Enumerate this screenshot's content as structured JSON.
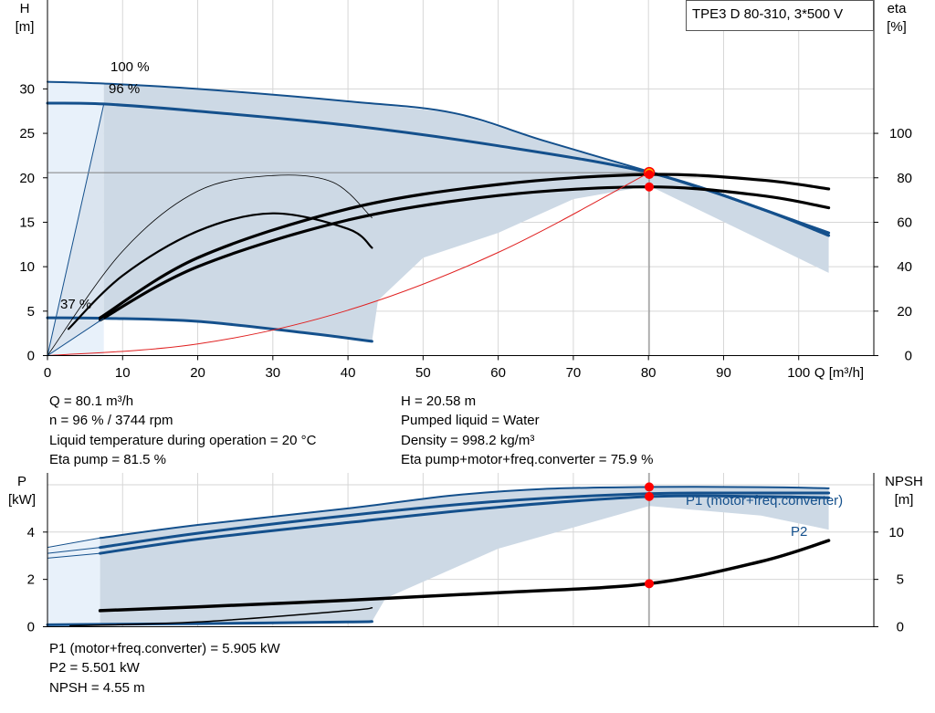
{
  "chart_data": [
    {
      "type": "line",
      "title": "TPE3 D 80-310, 3*500 V",
      "xlabel": "Q [m³/h]",
      "ylabel_top": "H",
      "ylabel_unit": "[m]",
      "y2label_top": "eta",
      "y2label_unit": "[%]",
      "xlim": [
        0,
        110
      ],
      "ylim": [
        0,
        40
      ],
      "y2lim": [
        0,
        160
      ],
      "x_ticks": [
        0,
        10,
        20,
        30,
        40,
        50,
        60,
        70,
        80,
        90,
        100
      ],
      "y_ticks": [
        0,
        5,
        10,
        15,
        20,
        25,
        30
      ],
      "y2_ticks": [
        0,
        20,
        40,
        60,
        80,
        100
      ],
      "curve_labels": [
        "100 %",
        "96 %",
        "37 %"
      ],
      "colors": {
        "pump_curve": "#14508c",
        "efficiency": "#000000",
        "system": "#e02020",
        "area": "#cdd9e5",
        "light_area": "#e8f1fa",
        "grid": "#d6d6d6",
        "duty_point": "#ff0000"
      },
      "series": [
        {
          "name": "100 %",
          "kind": "H",
          "x": [
            0,
            7.5,
            20,
            40,
            54,
            66,
            80.1
          ],
          "y": [
            30.8,
            30.6,
            30.0,
            28.6,
            27.3,
            24.2,
            20.7
          ]
        },
        {
          "kind": "H",
          "x": [
            80.1,
            90,
            100,
            104
          ],
          "y": [
            20.7,
            18.0,
            15.0,
            13.8
          ]
        },
        {
          "name": "96 %",
          "kind": "H",
          "x": [
            0,
            7.5,
            20,
            40,
            60,
            80.1,
            95,
            104
          ],
          "y": [
            28.4,
            28.3,
            27.5,
            25.9,
            23.6,
            20.58,
            16.5,
            13.5
          ]
        },
        {
          "name": "37 %",
          "kind": "H",
          "x": [
            0,
            7.5,
            20,
            35,
            43.2
          ],
          "y": [
            4.25,
            4.2,
            3.85,
            2.5,
            1.6
          ]
        },
        {
          "kind": "eta",
          "x": [
            7,
            20,
            40,
            60,
            80.1,
            95,
            104
          ],
          "y": [
            17,
            44,
            66,
            77,
            81.5,
            79,
            75
          ]
        },
        {
          "kind": "eta",
          "x": [
            7,
            20,
            40,
            60,
            80.1,
            95,
            104
          ],
          "y": [
            16,
            40,
            61,
            72,
            75.9,
            72,
            66.5
          ]
        },
        {
          "kind": "eta",
          "x": [
            2.8,
            10,
            20,
            30,
            40,
            43.2
          ],
          "y": [
            12,
            36,
            56,
            64,
            57,
            48.5
          ]
        },
        {
          "kind": "eta",
          "x": [
            0,
            10,
            20,
            30,
            38,
            43.2
          ],
          "y": [
            0,
            47,
            74,
            81,
            78,
            62
          ]
        },
        {
          "kind": "system",
          "x": [
            0,
            20,
            40,
            60,
            80.1
          ],
          "y": [
            0,
            1.3,
            5.1,
            11.6,
            20.58
          ]
        }
      ],
      "duty_point": {
        "Q": 80.1,
        "H": 20.58,
        "eta_pump": 81.5,
        "eta_total": 75.9
      }
    },
    {
      "type": "line",
      "xlim": [
        0,
        110
      ],
      "ylabel_top": "P",
      "ylabel_unit": "[kW]",
      "y2label_top": "NPSH",
      "y2label_unit": "[m]",
      "ylim": [
        0,
        6.5
      ],
      "y2lim": [
        0,
        16.25
      ],
      "y_ticks": [
        0,
        2,
        4
      ],
      "y2_ticks": [
        0,
        5,
        10
      ],
      "series": [
        {
          "name": "P1 (motor+freq.converter)",
          "kind": "P",
          "x": [
            7,
            20,
            40,
            54,
            66,
            80.1,
            95,
            104
          ],
          "y": [
            3.75,
            4.3,
            5.0,
            5.55,
            5.82,
            5.905,
            5.9,
            5.85
          ]
        },
        {
          "kind": "P",
          "x": [
            7,
            20,
            40,
            60,
            80.1,
            95,
            104
          ],
          "y": [
            3.35,
            3.95,
            4.7,
            5.3,
            5.62,
            5.65,
            5.65
          ]
        },
        {
          "name": "P2",
          "kind": "P",
          "x": [
            7,
            20,
            40,
            60,
            80.1,
            95,
            104
          ],
          "y": [
            3.1,
            3.7,
            4.4,
            5.05,
            5.501,
            5.5,
            5.45
          ]
        },
        {
          "kind": "P",
          "x": [
            0,
            7,
            20,
            40,
            43.2
          ],
          "y": [
            0.08,
            0.1,
            0.13,
            0.2,
            0.22
          ]
        },
        {
          "kind": "NPSH",
          "x": [
            7,
            20,
            40,
            60,
            80.1,
            95,
            104
          ],
          "y": [
            1.7,
            2.1,
            2.8,
            3.6,
            4.55,
            6.9,
            9.1
          ]
        },
        {
          "kind": "NPSH",
          "x": [
            3,
            20,
            40,
            43.2
          ],
          "y": [
            0.1,
            0.5,
            1.7,
            2.0
          ]
        }
      ],
      "duty_point": {
        "Q": 80.1,
        "P1": 5.905,
        "P2": 5.501,
        "NPSH": 4.55
      }
    }
  ],
  "info": {
    "q": "Q = 80.1 m³/h",
    "n": "n = 96 % / 3744 rpm",
    "temp": "Liquid temperature during operation = 20 °C",
    "eta_pump": "Eta pump = 81.5 %",
    "h": "H = 20.58 m",
    "liquid": "Pumped liquid = Water",
    "density": "Density = 998.2 kg/m³",
    "eta_total": "Eta pump+motor+freq.converter = 75.9 %",
    "p1": "P1 (motor+freq.converter) = 5.905 kW",
    "p2": "P2 = 5.501 kW",
    "npsh": "NPSH = 4.55 m"
  }
}
